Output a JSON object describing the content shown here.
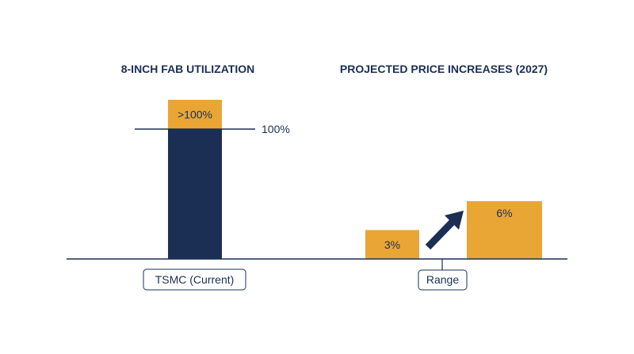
{
  "colors": {
    "navy": "#1b2f55",
    "gold": "#e9a635",
    "text": "#1b2f55",
    "background": "#ffffff"
  },
  "chart_data": [
    {
      "type": "bar",
      "title": "8-INCH FAB UTILIZATION",
      "categories": [
        "TSMC (Current)"
      ],
      "series": [
        {
          "values": [
            100
          ],
          "color": "#1b2f55"
        },
        {
          "values": [
            ">100%"
          ],
          "color": "#e9a635"
        }
      ],
      "reference_line": {
        "value": 100,
        "label": "100%"
      },
      "data_labels": [
        ">100%"
      ],
      "ylim": [
        0,
        100
      ],
      "grid": false
    },
    {
      "type": "bar",
      "title": "PROJECTED PRICE INCREASES (2027)",
      "category_label": "Range",
      "values": [
        3,
        6
      ],
      "data_labels": [
        "3%",
        "6%"
      ],
      "annotation": "arrow-up-right-icon",
      "color": "#e9a635",
      "grid": false
    }
  ]
}
